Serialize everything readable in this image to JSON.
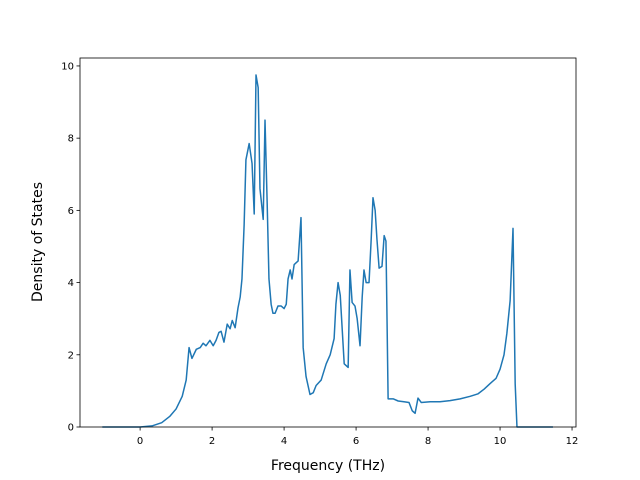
{
  "chart_data": {
    "type": "line",
    "xlabel": "Frequency (THz)",
    "ylabel": "Density of States",
    "x": [
      -1.05,
      0,
      0.33,
      0.6,
      0.83,
      1.0,
      1.17,
      1.28,
      1.36,
      1.44,
      1.56,
      1.67,
      1.75,
      1.83,
      1.94,
      2.03,
      2.11,
      2.19,
      2.25,
      2.33,
      2.42,
      2.5,
      2.56,
      2.64,
      2.72,
      2.78,
      2.83,
      2.89,
      2.94,
      3.03,
      3.11,
      3.17,
      3.22,
      3.28,
      3.33,
      3.42,
      3.47,
      3.53,
      3.58,
      3.64,
      3.69,
      3.75,
      3.83,
      3.92,
      4.0,
      4.06,
      4.11,
      4.17,
      4.22,
      4.28,
      4.39,
      4.47,
      4.53,
      4.61,
      4.72,
      4.81,
      4.89,
      5.03,
      5.17,
      5.28,
      5.39,
      5.44,
      5.5,
      5.56,
      5.67,
      5.78,
      5.83,
      5.89,
      5.97,
      6.03,
      6.11,
      6.17,
      6.22,
      6.28,
      6.36,
      6.42,
      6.47,
      6.53,
      6.58,
      6.64,
      6.72,
      6.78,
      6.83,
      6.89,
      7.03,
      7.17,
      7.33,
      7.47,
      7.56,
      7.64,
      7.72,
      7.81,
      8.06,
      8.33,
      8.61,
      8.89,
      9.17,
      9.39,
      9.56,
      9.72,
      9.89,
      10.0,
      10.11,
      10.19,
      10.28,
      10.36,
      10.42,
      10.47,
      11.47
    ],
    "series": [
      {
        "color": "#1f77b4",
        "values": [
          0,
          0,
          0.03,
          0.12,
          0.3,
          0.5,
          0.85,
          1.3,
          2.2,
          1.9,
          2.15,
          2.2,
          2.32,
          2.25,
          2.4,
          2.25,
          2.4,
          2.62,
          2.65,
          2.35,
          2.85,
          2.72,
          2.95,
          2.75,
          3.3,
          3.6,
          4.1,
          5.6,
          7.4,
          7.85,
          7.3,
          5.9,
          9.75,
          9.4,
          6.6,
          5.75,
          8.5,
          6.2,
          4.1,
          3.4,
          3.15,
          3.15,
          3.35,
          3.35,
          3.28,
          3.4,
          4.1,
          4.35,
          4.1,
          4.5,
          4.6,
          5.8,
          2.2,
          1.4,
          0.9,
          0.95,
          1.15,
          1.3,
          1.75,
          2.0,
          2.45,
          3.4,
          4.0,
          3.65,
          1.75,
          1.65,
          4.35,
          3.45,
          3.35,
          3.0,
          2.25,
          3.6,
          4.35,
          4.0,
          4.0,
          5.2,
          6.35,
          6.0,
          5.2,
          4.4,
          4.45,
          5.3,
          5.15,
          0.78,
          0.78,
          0.72,
          0.7,
          0.68,
          0.45,
          0.38,
          0.8,
          0.68,
          0.7,
          0.7,
          0.73,
          0.78,
          0.85,
          0.92,
          1.05,
          1.2,
          1.35,
          1.6,
          2.0,
          2.6,
          3.5,
          5.5,
          1.2,
          0,
          0
        ]
      }
    ],
    "xlim": [
      -1.67,
      12.11
    ],
    "ylim": [
      0,
      10.22
    ],
    "xticks": [
      0,
      2,
      4,
      6,
      8,
      10,
      12
    ],
    "yticks": [
      0,
      2,
      4,
      6,
      8,
      10
    ]
  }
}
